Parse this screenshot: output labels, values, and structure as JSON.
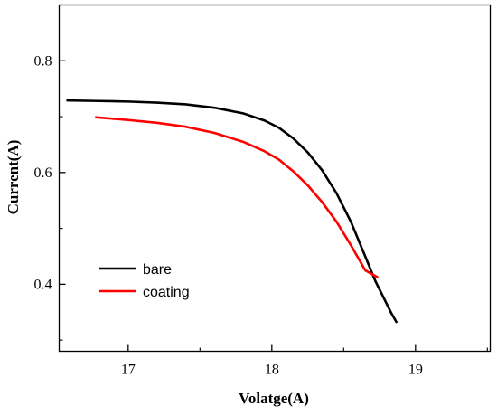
{
  "chart_data": {
    "type": "line",
    "xlabel": "Volatge(A)",
    "ylabel": "Current(A)",
    "xlim": [
      16.52,
      19.52
    ],
    "ylim": [
      0.28,
      0.9
    ],
    "x_ticks": [
      17,
      18,
      19
    ],
    "y_ticks": [
      0.4,
      0.6,
      0.8
    ],
    "x_tick_labels": [
      "17",
      "18",
      "19"
    ],
    "y_tick_labels": [
      "0.4",
      "0.6",
      "0.8"
    ],
    "grid": false,
    "legend_position": "lower-left",
    "series": [
      {
        "name": "bare",
        "color": "#000000",
        "x": [
          16.57,
          16.8,
          17.0,
          17.2,
          17.4,
          17.6,
          17.8,
          17.95,
          18.05,
          18.15,
          18.25,
          18.35,
          18.45,
          18.55,
          18.65,
          18.72,
          18.78,
          18.83,
          18.87
        ],
        "y": [
          0.729,
          0.728,
          0.727,
          0.725,
          0.722,
          0.716,
          0.706,
          0.693,
          0.68,
          0.661,
          0.636,
          0.604,
          0.563,
          0.512,
          0.45,
          0.406,
          0.375,
          0.349,
          0.331
        ]
      },
      {
        "name": "coating",
        "color": "#ff0000",
        "x": [
          16.77,
          17.0,
          17.2,
          17.4,
          17.6,
          17.8,
          17.95,
          18.05,
          18.15,
          18.25,
          18.35,
          18.45,
          18.55,
          18.65,
          18.74
        ],
        "y": [
          0.699,
          0.694,
          0.689,
          0.682,
          0.671,
          0.655,
          0.638,
          0.623,
          0.602,
          0.577,
          0.547,
          0.512,
          0.47,
          0.425,
          0.412
        ]
      }
    ]
  }
}
